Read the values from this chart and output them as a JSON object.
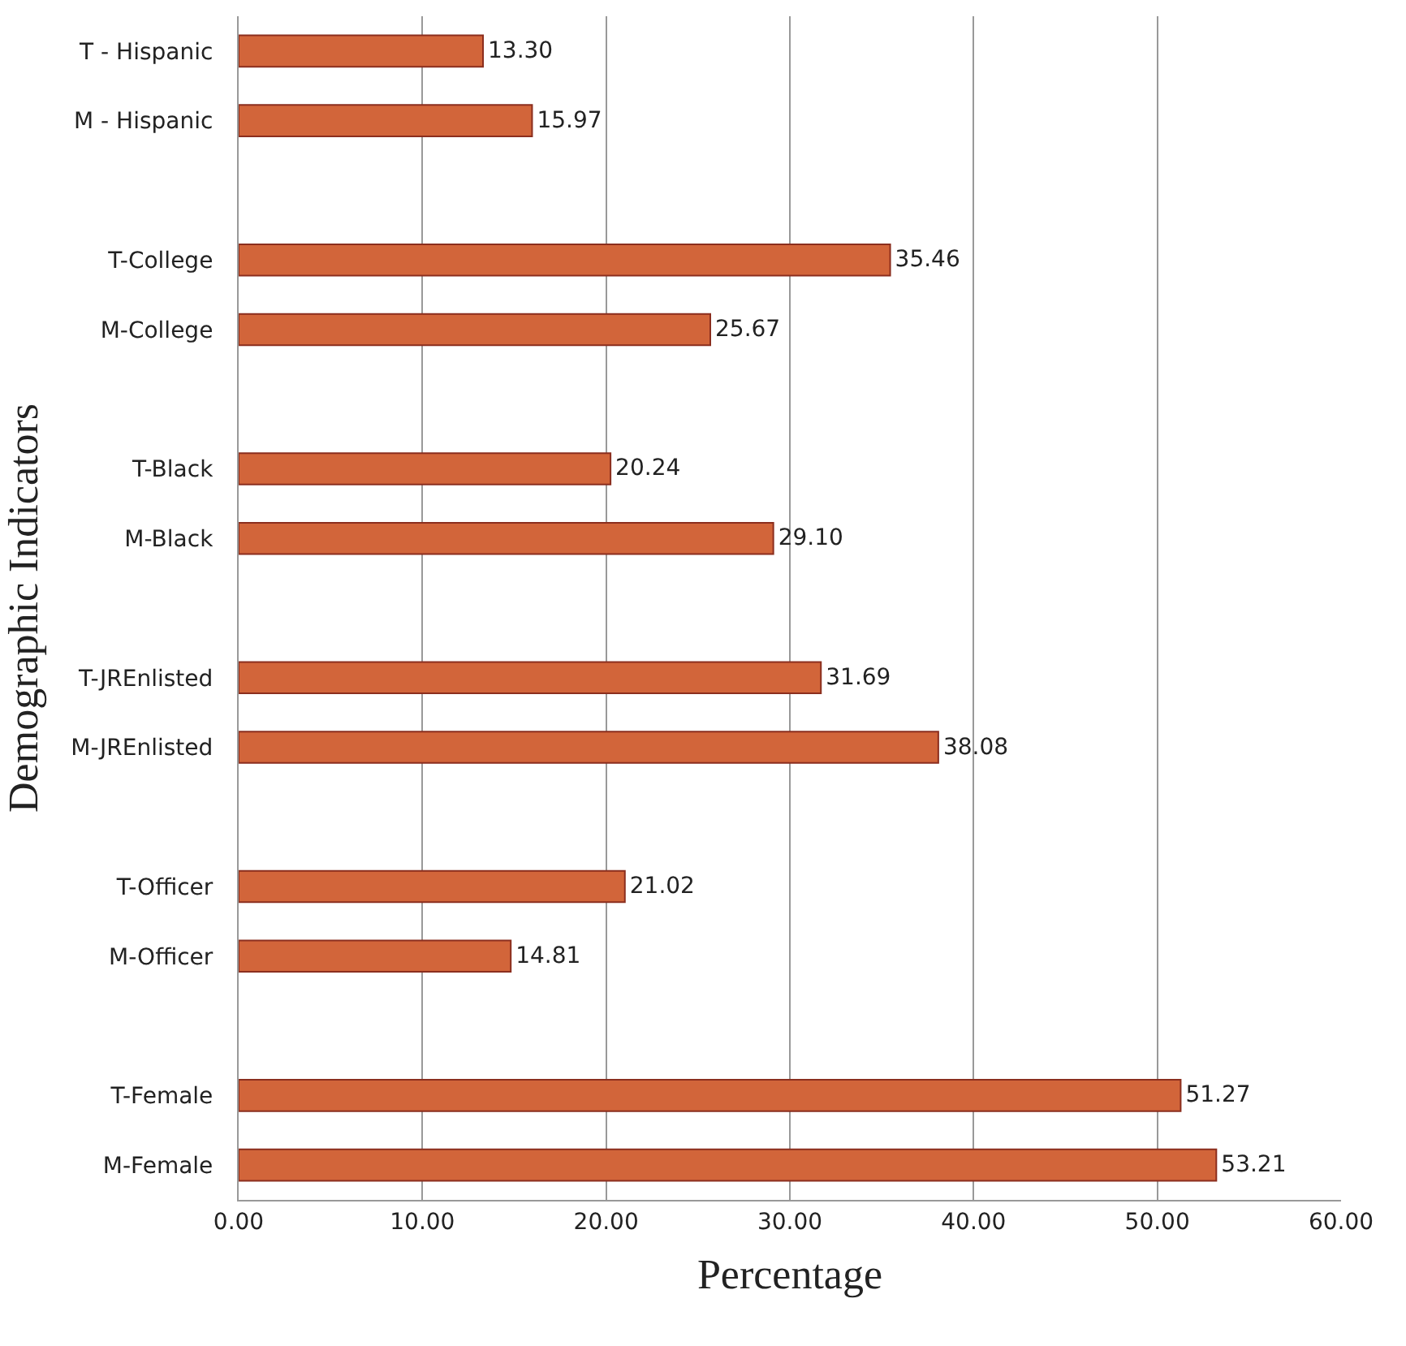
{
  "chart_data": {
    "type": "bar",
    "orientation": "horizontal",
    "xlabel": "Percentage",
    "ylabel": "Demographic Indicators",
    "categories": [
      "T - Hispanic",
      "M - Hispanic",
      null,
      "T-College",
      "M-College",
      null,
      "T-Black",
      "M-Black",
      null,
      "T-JREnlisted",
      "M-JREnlisted",
      null,
      "T-Officer",
      "M-Officer",
      null,
      "T-Female",
      "M-Female"
    ],
    "values": [
      13.3,
      15.97,
      null,
      35.46,
      25.67,
      null,
      20.24,
      29.1,
      null,
      31.69,
      38.08,
      null,
      21.02,
      14.81,
      null,
      51.27,
      53.21
    ],
    "value_labels": [
      "13.30",
      "15.97",
      null,
      "35.46",
      "25.67",
      null,
      "20.24",
      "29.10",
      null,
      "31.69",
      "38.08",
      null,
      "21.02",
      "14.81",
      null,
      "51.27",
      "53.21"
    ],
    "color": "#d2653a",
    "xlim": [
      0,
      60
    ],
    "xticks": [
      {
        "value": 0,
        "label": "0.00"
      },
      {
        "value": 10,
        "label": "10.00"
      },
      {
        "value": 20,
        "label": "20.00"
      },
      {
        "value": 30,
        "label": "30.00"
      },
      {
        "value": 40,
        "label": "40.00"
      },
      {
        "value": 50,
        "label": "50.00"
      },
      {
        "value": 60,
        "label": "60.00"
      }
    ],
    "grid": "x"
  }
}
